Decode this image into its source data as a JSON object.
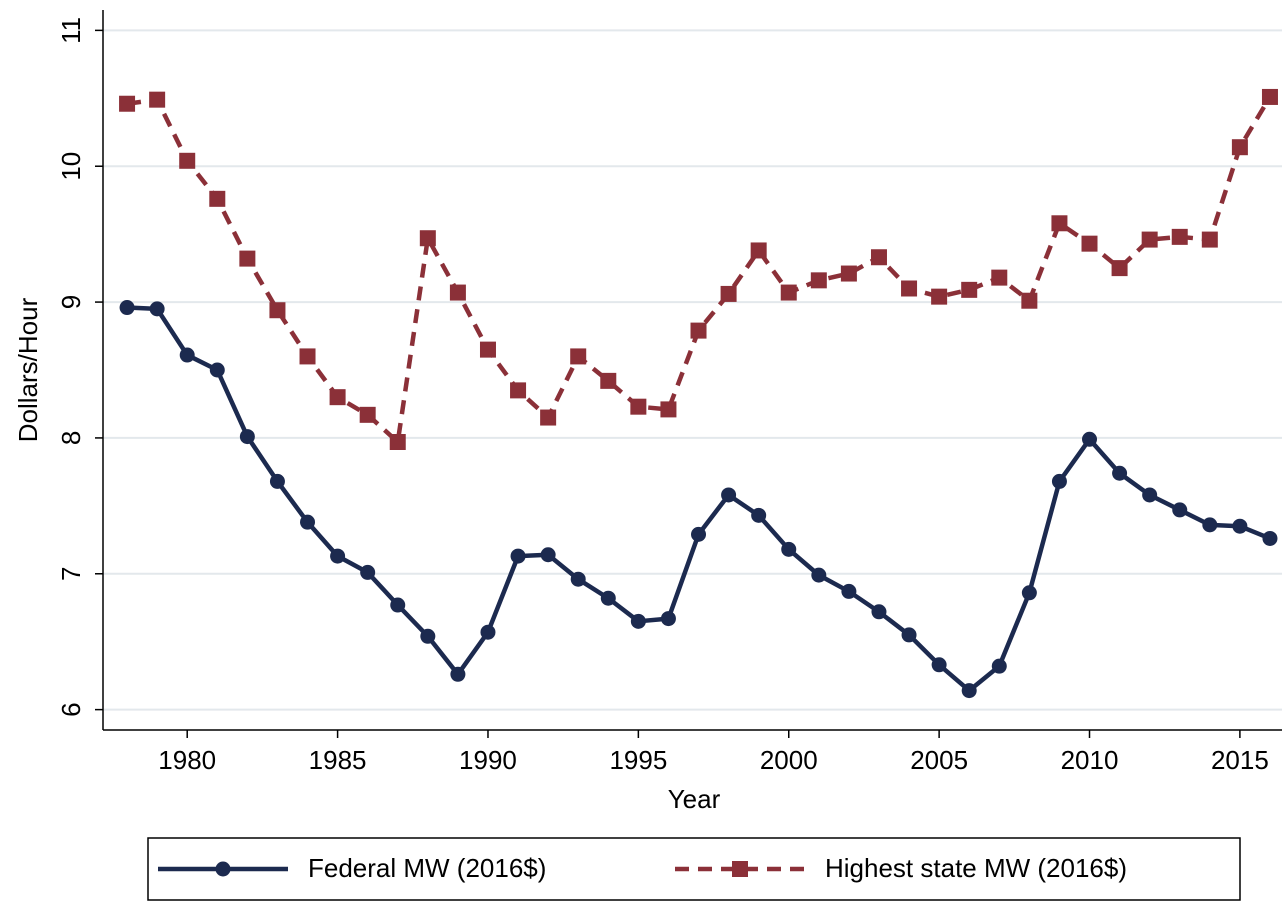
{
  "chart_data": {
    "type": "line",
    "x_label": "Year",
    "y_label": "Dollars/Hour",
    "x": [
      1978,
      1979,
      1980,
      1981,
      1982,
      1983,
      1984,
      1985,
      1986,
      1987,
      1988,
      1989,
      1990,
      1991,
      1992,
      1993,
      1994,
      1995,
      1996,
      1997,
      1998,
      1999,
      2000,
      2001,
      2002,
      2003,
      2004,
      2005,
      2006,
      2007,
      2008,
      2009,
      2010,
      2011,
      2012,
      2013,
      2014,
      2015,
      2016
    ],
    "series": [
      {
        "name": "Federal MW (2016$)",
        "color": "#1c2a4f",
        "dash": false,
        "marker": "circle",
        "values": [
          8.96,
          8.95,
          8.61,
          8.5,
          8.01,
          7.68,
          7.38,
          7.13,
          7.01,
          6.77,
          6.54,
          6.26,
          6.57,
          7.13,
          7.14,
          6.96,
          6.82,
          6.65,
          6.67,
          7.29,
          7.58,
          7.43,
          7.18,
          6.99,
          6.87,
          6.72,
          6.55,
          6.33,
          6.14,
          6.32,
          6.86,
          7.68,
          7.99,
          7.74,
          7.58,
          7.47,
          7.36,
          7.35,
          7.26
        ]
      },
      {
        "name": "Highest state MW (2016$)",
        "color": "#8b3038",
        "dash": true,
        "marker": "square",
        "values": [
          10.46,
          10.49,
          10.04,
          9.76,
          9.32,
          8.94,
          8.6,
          8.3,
          8.17,
          7.97,
          9.47,
          9.07,
          8.65,
          8.35,
          8.15,
          8.6,
          8.42,
          8.23,
          8.21,
          8.79,
          9.06,
          9.38,
          9.07,
          9.16,
          9.21,
          9.33,
          9.1,
          9.04,
          9.09,
          9.18,
          9.01,
          9.58,
          9.43,
          9.25,
          9.46,
          9.48,
          9.46,
          10.14,
          10.51
        ]
      }
    ],
    "xlim": [
      1977.2,
      2016.4
    ],
    "xticks": [
      1980,
      1985,
      1990,
      1995,
      2000,
      2005,
      2010,
      2015
    ],
    "ylim": [
      5.85,
      11.15
    ],
    "yticks": [
      6,
      7,
      8,
      9,
      10,
      11
    ],
    "grid": true,
    "legend": "bottom"
  }
}
